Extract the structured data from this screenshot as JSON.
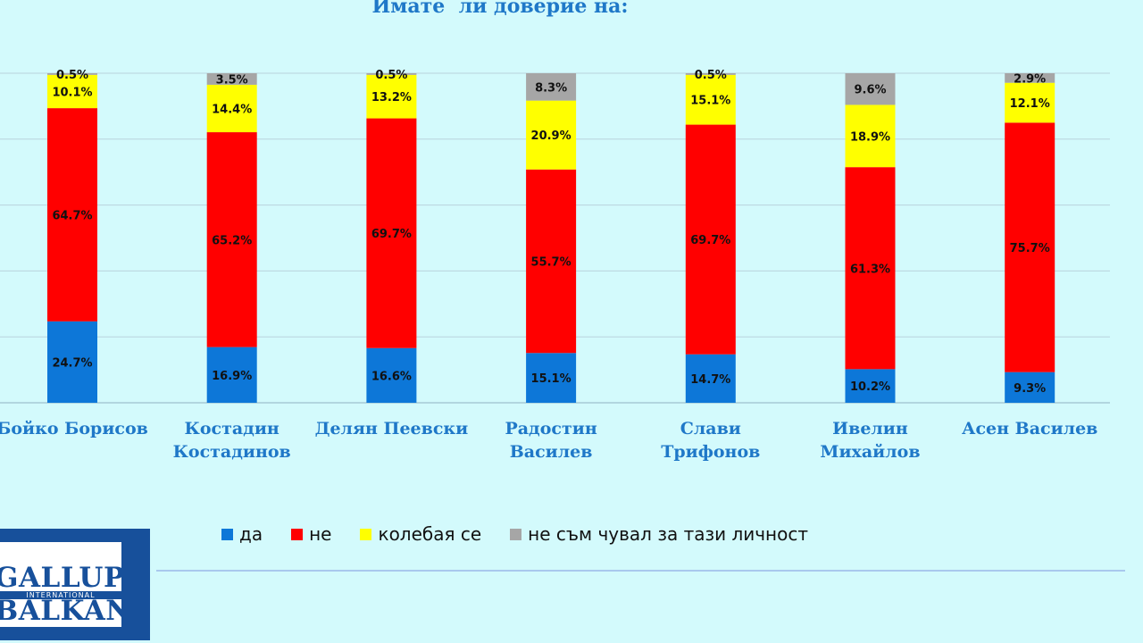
{
  "chart_data": {
    "type": "bar",
    "stacked": true,
    "title": "Имате  ли доверие на:",
    "categories": [
      [
        "Бойко Борисов"
      ],
      [
        "Костадин",
        "Костадинов"
      ],
      [
        "Делян Пеевски"
      ],
      [
        "Радостин",
        "Василев"
      ],
      [
        "Слави",
        "Трифонов"
      ],
      [
        "Ивелин",
        "Михайлов"
      ],
      [
        "Асен Василев"
      ]
    ],
    "series": [
      {
        "name": "да",
        "color": "#0d77d8",
        "values": [
          24.7,
          16.9,
          16.6,
          15.1,
          14.7,
          10.2,
          9.3
        ]
      },
      {
        "name": "не",
        "color": "#ff0000",
        "values": [
          64.7,
          65.2,
          69.7,
          55.7,
          69.7,
          61.3,
          75.7
        ]
      },
      {
        "name": "колебая се",
        "color": "#ffff00",
        "values": [
          10.1,
          14.4,
          13.2,
          20.9,
          15.1,
          18.9,
          12.1
        ]
      },
      {
        "name": "не съм чувал за тази личност",
        "color": "#a6a6a6",
        "values": [
          0.5,
          3.5,
          0.5,
          8.3,
          0.5,
          9.6,
          2.9
        ]
      }
    ],
    "ylim": [
      0,
      100
    ],
    "grid": true,
    "legend_position": "bottom",
    "value_suffix": "%"
  },
  "logo": {
    "line1": "GALLUP",
    "line2": "INTERNATIONAL",
    "line3": "BALKAN"
  }
}
